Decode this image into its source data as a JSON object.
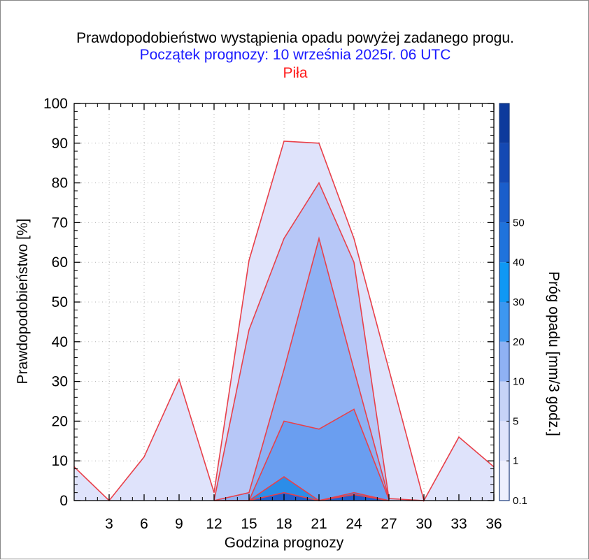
{
  "chart_data": {
    "type": "area",
    "title": "Prawdopodobieństwo wystąpienia opadu powyżej zadanego progu.",
    "subtitle": "Początek prognozy: 10 września 2025r. 06 UTC",
    "location": "Piła",
    "xlabel": "Godzina prognozy",
    "ylabel": "Prawdopodobieństwo [%]",
    "colorbar_label": "Próg opadu [mm/3 godz.]",
    "x": [
      0,
      3,
      6,
      9,
      12,
      15,
      18,
      21,
      24,
      27,
      30,
      33,
      36
    ],
    "x_ticks": [
      3,
      6,
      9,
      12,
      15,
      18,
      21,
      24,
      27,
      30,
      33,
      36
    ],
    "xlim": [
      0,
      36
    ],
    "ylim": [
      0,
      100
    ],
    "y_ticks": [
      0,
      10,
      20,
      30,
      40,
      50,
      60,
      70,
      80,
      90,
      100
    ],
    "grid": true,
    "series": [
      {
        "name": "0.1",
        "color": "#dfe3fb",
        "values": [
          8.5,
          0,
          11,
          30.5,
          2,
          60.5,
          90.5,
          90,
          66,
          33,
          0,
          16,
          8.5
        ]
      },
      {
        "name": "1",
        "color": "#b7c7f7",
        "values": [
          null,
          null,
          null,
          null,
          0,
          43,
          66,
          80,
          60,
          0.5,
          0,
          null,
          null
        ]
      },
      {
        "name": "5",
        "color": "#8fb1f3",
        "values": [
          null,
          null,
          null,
          null,
          0,
          2,
          33,
          66,
          33,
          0.5,
          null,
          null,
          null
        ]
      },
      {
        "name": "10",
        "color": "#6a9ef0",
        "values": [
          null,
          null,
          null,
          null,
          0,
          0,
          20,
          18,
          23,
          0.3,
          null,
          null,
          null
        ]
      },
      {
        "name": "20",
        "color": "#2b8de8",
        "values": [
          null,
          null,
          null,
          null,
          null,
          0,
          6,
          0,
          2,
          0,
          null,
          null,
          null
        ]
      },
      {
        "name": "30",
        "color": "#1f5fd0",
        "values": [
          null,
          null,
          null,
          null,
          null,
          0,
          2,
          0,
          1.5,
          0,
          null,
          null,
          null
        ]
      }
    ],
    "colorbar": {
      "labels": [
        "0.1",
        "1",
        "5",
        "10",
        "20",
        "30",
        "40",
        "50"
      ],
      "colors": [
        "#eef0fd",
        "#dfe3fb",
        "#c6d3f7",
        "#8fb1f3",
        "#3d97f0",
        "#0f98f4",
        "#1f73dc",
        "#1a5ecb",
        "#1449b3",
        "#0d3a9c"
      ],
      "edge_color": "#1a3a7a"
    },
    "outline_color": "#e8404a"
  }
}
